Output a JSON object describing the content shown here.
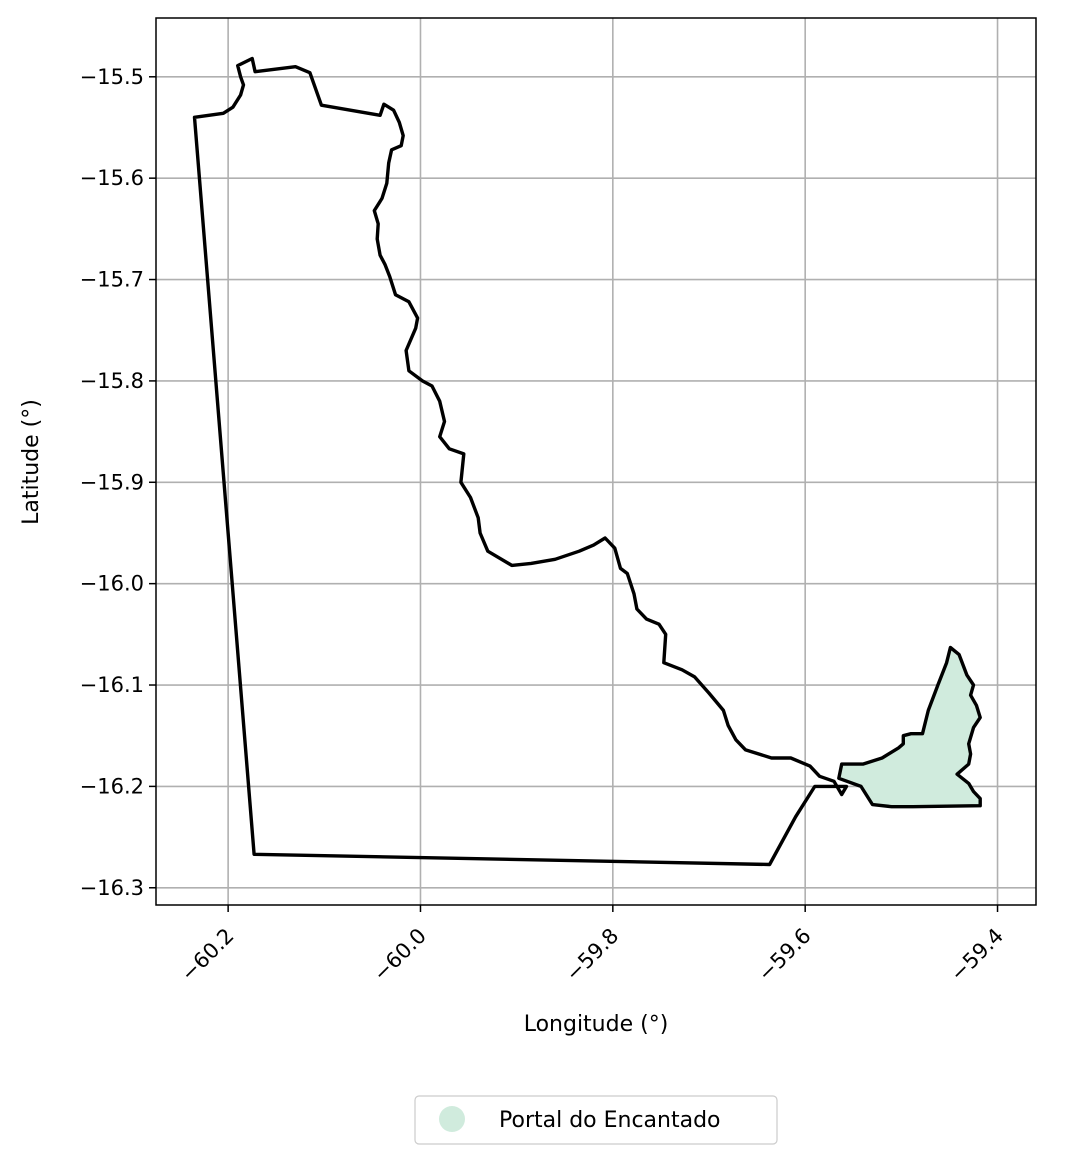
{
  "chart_data": {
    "type": "map",
    "title": "",
    "xlabel": "Longitude (°)",
    "ylabel": "Latitude (°)",
    "xlim": [
      -60.275,
      -59.36
    ],
    "ylim": [
      -16.317,
      -15.442
    ],
    "x_ticks": [
      -60.2,
      -60.0,
      -59.8,
      -59.6,
      -59.4
    ],
    "x_tick_labels": [
      "−60.2",
      "−60.0",
      "−59.8",
      "−59.6",
      "−59.4"
    ],
    "y_ticks": [
      -15.5,
      -15.6,
      -15.7,
      -15.8,
      -15.9,
      -16.0,
      -16.1,
      -16.2,
      -16.3
    ],
    "y_tick_labels": [
      "−15.5",
      "−15.6",
      "−15.7",
      "−15.8",
      "−15.9",
      "−16.0",
      "−16.1",
      "−16.2",
      "−16.3"
    ],
    "grid": true,
    "legend": {
      "position": "bottom-center",
      "entries": [
        "Portal do Encantado"
      ]
    },
    "regions": [
      {
        "name": "outer-boundary",
        "fill": "none",
        "stroke": "#000000",
        "coords": [
          [
            -60.235,
            -15.54
          ],
          [
            -60.205,
            -15.536
          ],
          [
            -60.195,
            -15.53
          ],
          [
            -60.187,
            -15.518
          ],
          [
            -60.184,
            -15.508
          ],
          [
            -60.187,
            -15.5
          ],
          [
            -60.19,
            -15.489
          ],
          [
            -60.175,
            -15.482
          ],
          [
            -60.172,
            -15.495
          ],
          [
            -60.13,
            -15.49
          ],
          [
            -60.115,
            -15.496
          ],
          [
            -60.103,
            -15.528
          ],
          [
            -60.042,
            -15.538
          ],
          [
            -60.038,
            -15.527
          ],
          [
            -60.028,
            -15.533
          ],
          [
            -60.022,
            -15.545
          ],
          [
            -60.018,
            -15.558
          ],
          [
            -60.02,
            -15.568
          ],
          [
            -60.03,
            -15.572
          ],
          [
            -60.033,
            -15.585
          ],
          [
            -60.035,
            -15.605
          ],
          [
            -60.04,
            -15.62
          ],
          [
            -60.048,
            -15.632
          ],
          [
            -60.044,
            -15.645
          ],
          [
            -60.045,
            -15.66
          ],
          [
            -60.042,
            -15.676
          ],
          [
            -60.037,
            -15.685
          ],
          [
            -60.032,
            -15.697
          ],
          [
            -60.026,
            -15.715
          ],
          [
            -60.012,
            -15.722
          ],
          [
            -60.003,
            -15.738
          ],
          [
            -60.005,
            -15.748
          ],
          [
            -60.015,
            -15.77
          ],
          [
            -60.012,
            -15.79
          ],
          [
            -59.998,
            -15.8
          ],
          [
            -59.988,
            -15.805
          ],
          [
            -59.98,
            -15.82
          ],
          [
            -59.975,
            -15.84
          ],
          [
            -59.98,
            -15.855
          ],
          [
            -59.97,
            -15.867
          ],
          [
            -59.955,
            -15.872
          ],
          [
            -59.958,
            -15.9
          ],
          [
            -59.948,
            -15.915
          ],
          [
            -59.94,
            -15.935
          ],
          [
            -59.938,
            -15.95
          ],
          [
            -59.93,
            -15.968
          ],
          [
            -59.905,
            -15.982
          ],
          [
            -59.885,
            -15.98
          ],
          [
            -59.86,
            -15.976
          ],
          [
            -59.835,
            -15.968
          ],
          [
            -59.82,
            -15.962
          ],
          [
            -59.808,
            -15.955
          ],
          [
            -59.798,
            -15.965
          ],
          [
            -59.792,
            -15.985
          ],
          [
            -59.785,
            -15.99
          ],
          [
            -59.778,
            -16.01
          ],
          [
            -59.775,
            -16.025
          ],
          [
            -59.765,
            -16.035
          ],
          [
            -59.752,
            -16.04
          ],
          [
            -59.745,
            -16.05
          ],
          [
            -59.747,
            -16.078
          ],
          [
            -59.728,
            -16.085
          ],
          [
            -59.715,
            -16.092
          ],
          [
            -59.7,
            -16.108
          ],
          [
            -59.685,
            -16.125
          ],
          [
            -59.68,
            -16.14
          ],
          [
            -59.672,
            -16.154
          ],
          [
            -59.662,
            -16.164
          ],
          [
            -59.635,
            -16.172
          ],
          [
            -59.615,
            -16.172
          ],
          [
            -59.595,
            -16.18
          ],
          [
            -59.585,
            -16.19
          ],
          [
            -59.57,
            -16.195
          ],
          [
            -59.562,
            -16.208
          ],
          [
            -59.557,
            -16.2
          ],
          [
            -59.59,
            -16.2
          ],
          [
            -59.61,
            -16.23
          ],
          [
            -59.637,
            -16.277
          ],
          [
            -60.173,
            -16.267
          ],
          [
            -60.235,
            -15.54
          ]
        ]
      },
      {
        "name": "Portal do Encantado",
        "fill": "#d0ebdd",
        "stroke": "#000000",
        "coords": [
          [
            -59.565,
            -16.192
          ],
          [
            -59.562,
            -16.178
          ],
          [
            -59.54,
            -16.178
          ],
          [
            -59.52,
            -16.172
          ],
          [
            -59.503,
            -16.162
          ],
          [
            -59.498,
            -16.158
          ],
          [
            -59.498,
            -16.15
          ],
          [
            -59.49,
            -16.148
          ],
          [
            -59.478,
            -16.148
          ],
          [
            -59.472,
            -16.125
          ],
          [
            -59.462,
            -16.1
          ],
          [
            -59.453,
            -16.078
          ],
          [
            -59.449,
            -16.063
          ],
          [
            -59.44,
            -16.07
          ],
          [
            -59.432,
            -16.09
          ],
          [
            -59.425,
            -16.1
          ],
          [
            -59.428,
            -16.11
          ],
          [
            -59.422,
            -16.12
          ],
          [
            -59.418,
            -16.132
          ],
          [
            -59.425,
            -16.142
          ],
          [
            -59.43,
            -16.158
          ],
          [
            -59.428,
            -16.168
          ],
          [
            -59.43,
            -16.178
          ],
          [
            -59.442,
            -16.188
          ],
          [
            -59.43,
            -16.197
          ],
          [
            -59.425,
            -16.205
          ],
          [
            -59.418,
            -16.212
          ],
          [
            -59.418,
            -16.219
          ],
          [
            -59.488,
            -16.22
          ],
          [
            -59.51,
            -16.22
          ],
          [
            -59.53,
            -16.218
          ],
          [
            -59.542,
            -16.2
          ],
          [
            -59.565,
            -16.192
          ]
        ]
      }
    ]
  }
}
